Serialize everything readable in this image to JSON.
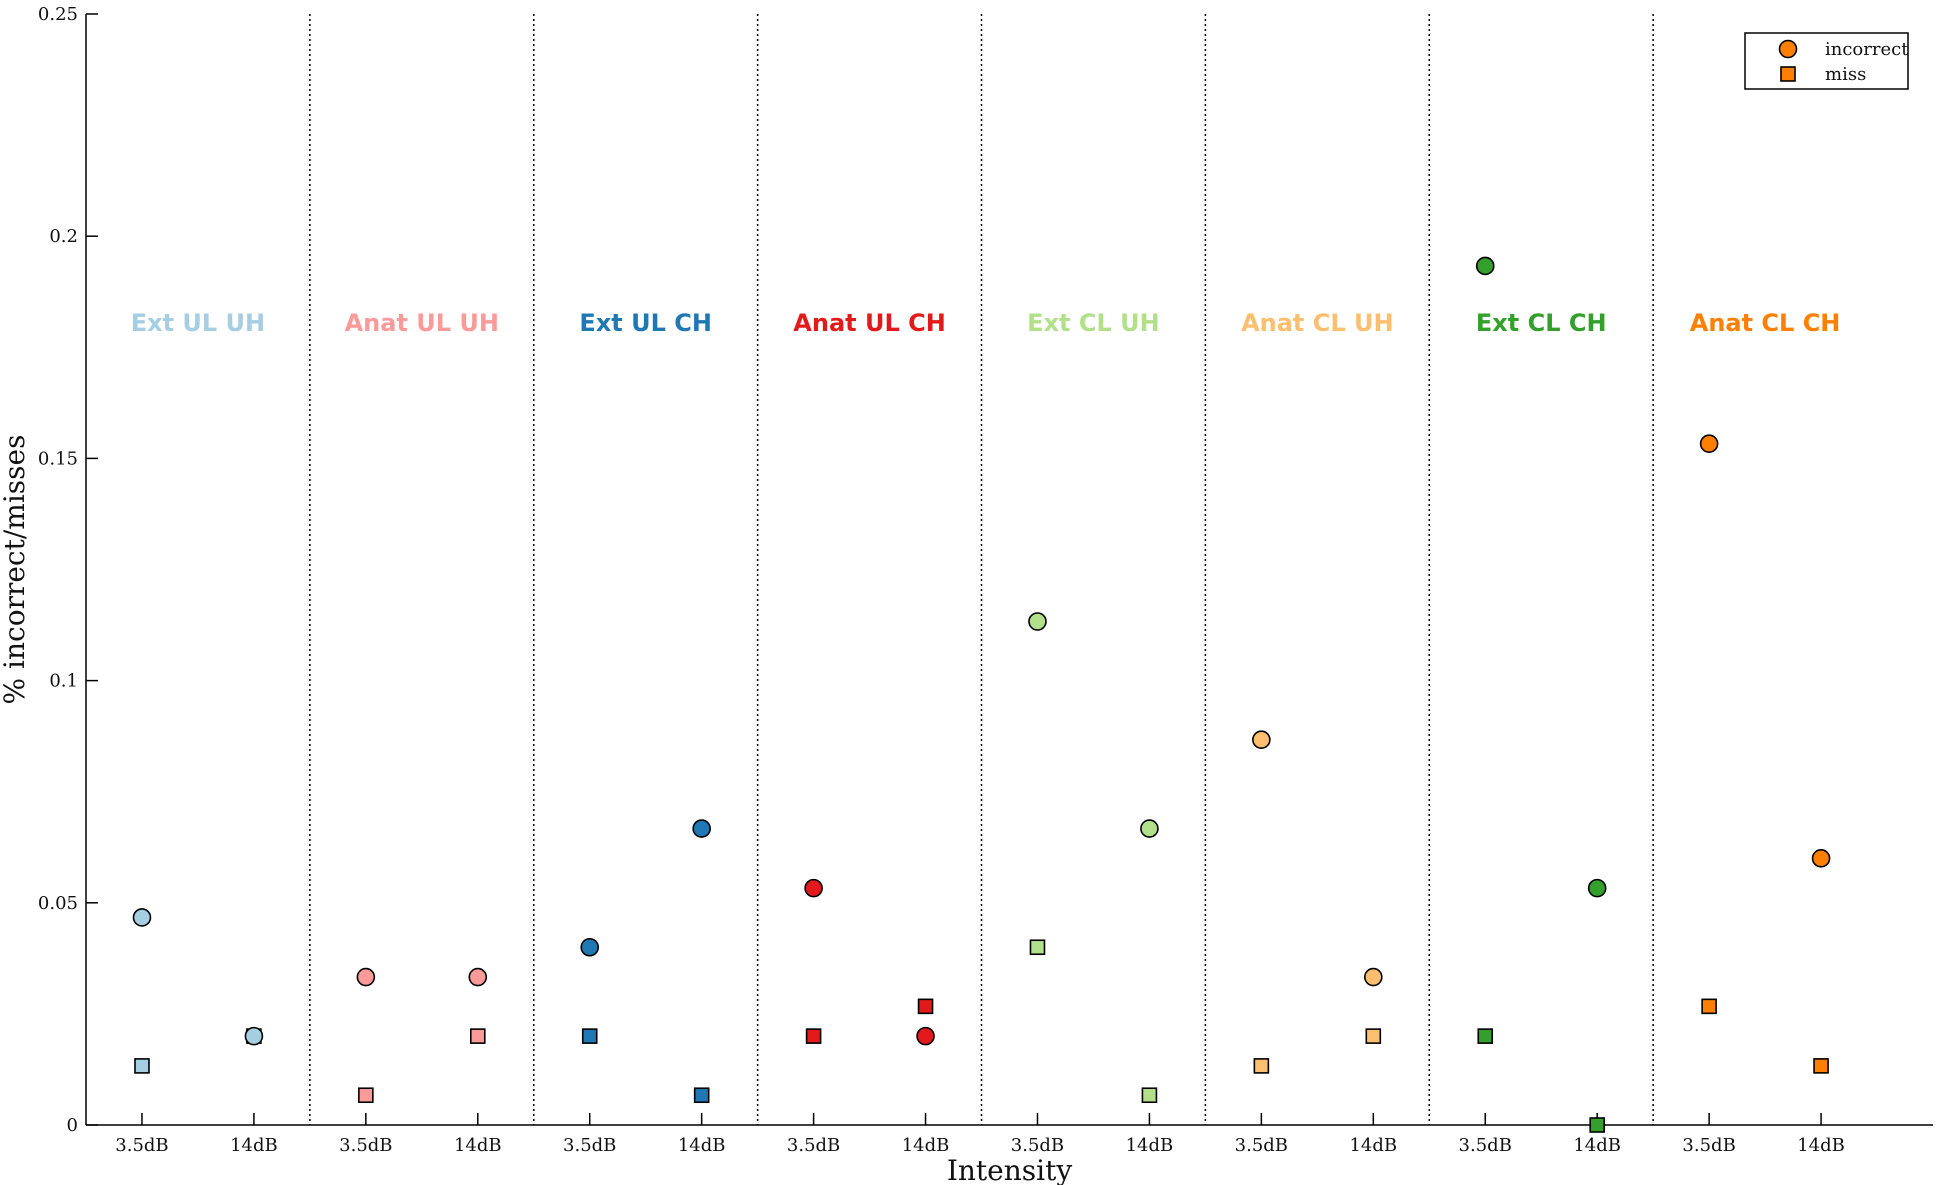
{
  "chart_data": {
    "type": "scatter",
    "xlabel": "Intensity",
    "ylabel": "% incorrect/misses",
    "ylim": [
      0,
      0.25
    ],
    "yticks": [
      "0",
      "0.05",
      "0.1",
      "0.15",
      "0.2",
      "0.25"
    ],
    "ytick_values": [
      0,
      0.05,
      0.1,
      0.15,
      0.2,
      0.25
    ],
    "x_tick_labels": [
      "3.5dB",
      "14dB"
    ],
    "grid": false,
    "legend_position": "top-right",
    "legend": [
      {
        "label": "incorrect",
        "marker": "circle"
      },
      {
        "label": "miss",
        "marker": "square"
      }
    ],
    "groups": [
      {
        "label": "Ext UL UH",
        "color": "#a6cee3",
        "incorrect": [
          0.0467,
          0.02
        ],
        "miss": [
          0.0133,
          0.02
        ]
      },
      {
        "label": "Anat UL UH",
        "color": "#fb9a99",
        "incorrect": [
          0.0333,
          0.0333
        ],
        "miss": [
          0.0067,
          0.02
        ]
      },
      {
        "label": "Ext UL CH",
        "color": "#1f78b4",
        "incorrect": [
          0.04,
          0.0667
        ],
        "miss": [
          0.02,
          0.0067
        ]
      },
      {
        "label": "Anat UL CH",
        "color": "#e31a1c",
        "incorrect": [
          0.0533,
          0.02
        ],
        "miss": [
          0.02,
          0.0267
        ]
      },
      {
        "label": "Ext CL UH",
        "color": "#b2df8a",
        "incorrect": [
          0.1133,
          0.0667
        ],
        "miss": [
          0.04,
          0.0067
        ]
      },
      {
        "label": "Anat CL UH",
        "color": "#fdbf6f",
        "incorrect": [
          0.0867,
          0.0333
        ],
        "miss": [
          0.0133,
          0.02
        ]
      },
      {
        "label": "Ext CL CH",
        "color": "#33a02c",
        "incorrect": [
          0.1933,
          0.0533
        ],
        "miss": [
          0.02,
          0.0
        ]
      },
      {
        "label": "Anat CL CH",
        "color": "#ff7f00",
        "incorrect": [
          0.1533,
          0.06
        ],
        "miss": [
          0.0267,
          0.0133
        ]
      }
    ]
  }
}
